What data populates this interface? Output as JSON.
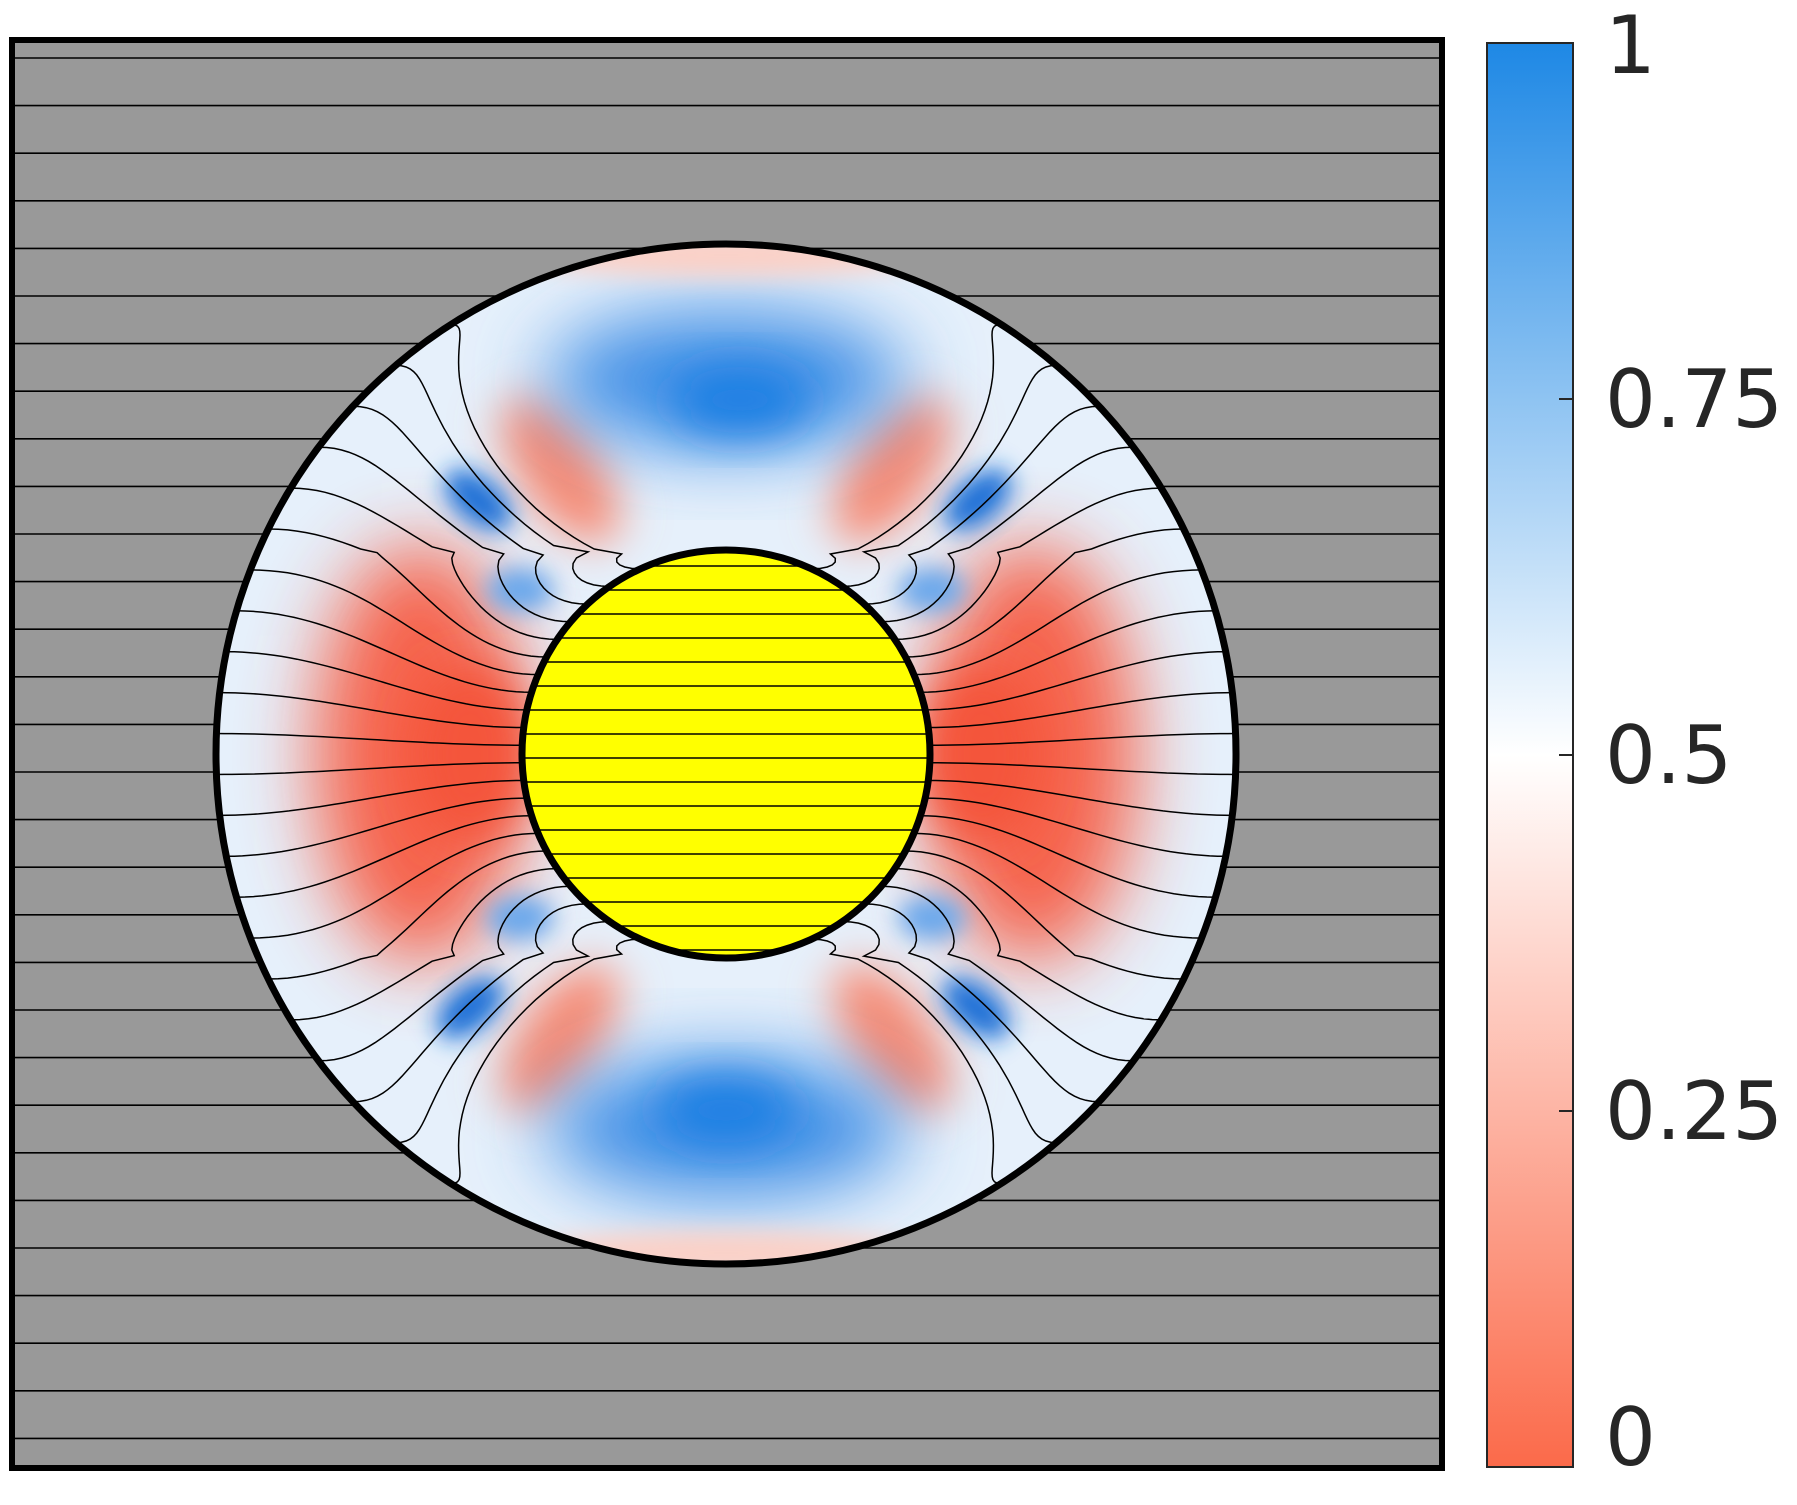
{
  "colorbar": {
    "ticks": [
      {
        "value": 1,
        "label": "1"
      },
      {
        "value": 0.75,
        "label": "0.75"
      },
      {
        "value": 0.5,
        "label": "0.5"
      },
      {
        "value": 0.25,
        "label": "0.25"
      },
      {
        "value": 0,
        "label": "0"
      }
    ],
    "color_low": "#fb6a4a",
    "color_mid": "#ffffff",
    "color_high": "#1e88e5"
  },
  "colors": {
    "background_region": "#999999",
    "core_region": "#ffff00",
    "outline": "#000000",
    "field_line": "#000000"
  }
}
